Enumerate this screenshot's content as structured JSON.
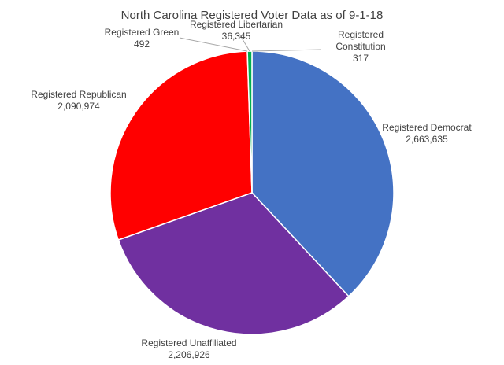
{
  "chart_data": {
    "type": "pie",
    "title": "North Carolina Registered Voter Data as of 9-1-18",
    "slices": [
      {
        "label": "Registered Democrat",
        "value": 2663635,
        "value_label": "2,663,635",
        "color": "#4472C4"
      },
      {
        "label": "Registered Unaffiliated",
        "value": 2206926,
        "value_label": "2,206,926",
        "color": "#7030A0"
      },
      {
        "label": "Registered Republican",
        "value": 2090974,
        "value_label": "2,090,974",
        "color": "#FF0000"
      },
      {
        "label": "Registered Green",
        "value": 492,
        "value_label": "492",
        "color": "#FFC000"
      },
      {
        "label": "Registered Libertarian",
        "value": 36345,
        "value_label": "36,345",
        "color": "#00B050"
      },
      {
        "label": "Registered Constitution",
        "value": 317,
        "value_label": "317",
        "color": "#5B9BD5"
      }
    ],
    "legend": "none",
    "start_angle": "12 o'clock, clockwise"
  }
}
